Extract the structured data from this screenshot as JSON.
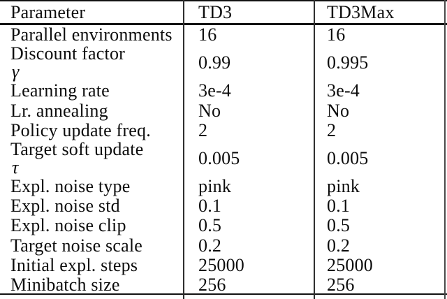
{
  "table": {
    "columns": [
      "Parameter",
      "TD3",
      "TD3Max"
    ],
    "rows": [
      {
        "param": "Parallel environments",
        "math": "",
        "td3": "16",
        "td3max": "16"
      },
      {
        "param": "Discount factor",
        "math": "γ",
        "td3": "0.99",
        "td3max": "0.995"
      },
      {
        "param": "Learning rate",
        "math": "",
        "td3": "3e-4",
        "td3max": "3e-4"
      },
      {
        "param": "Lr. annealing",
        "math": "",
        "td3": "No",
        "td3max": "No"
      },
      {
        "param": "Policy update freq.",
        "math": "",
        "td3": "2",
        "td3max": "2"
      },
      {
        "param": "Target soft update",
        "math": "τ",
        "td3": "0.005",
        "td3max": "0.005"
      },
      {
        "param": "Expl. noise type",
        "math": "",
        "td3": "pink",
        "td3max": "pink"
      },
      {
        "param": "Expl. noise std",
        "math": "",
        "td3": "0.1",
        "td3max": "0.1"
      },
      {
        "param": "Expl. noise clip",
        "math": "",
        "td3": "0.5",
        "td3max": "0.5"
      },
      {
        "param": "Target noise scale",
        "math": "",
        "td3": "0.2",
        "td3max": "0.2"
      },
      {
        "param": "Initial expl. steps",
        "math": "",
        "td3": "25000",
        "td3max": "25000"
      },
      {
        "param": "Minibatch size",
        "math": "",
        "td3": "256",
        "td3max": "256"
      }
    ]
  },
  "colors": {
    "background": "#ffffff",
    "text": "#0d0d0d",
    "rule": "#121212",
    "column_rule": "#2e2e2e"
  }
}
